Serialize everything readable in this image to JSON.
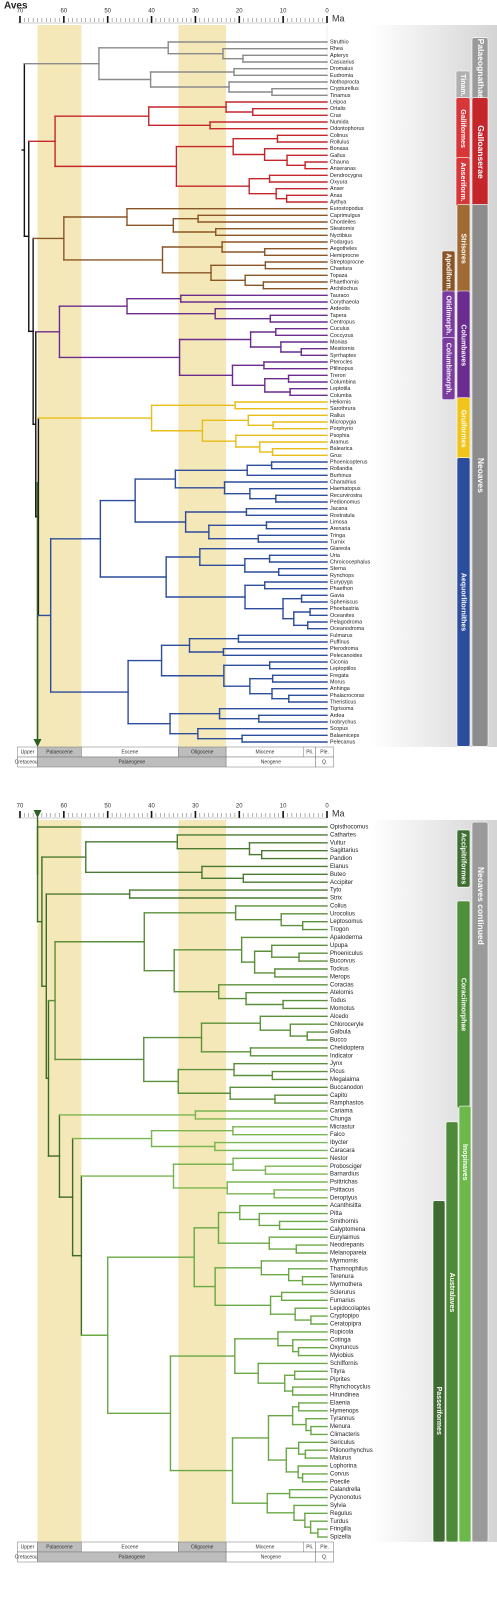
{
  "title": "Aves",
  "timescale": {
    "ticks": [
      70,
      60,
      50,
      40,
      30,
      20,
      10,
      0
    ],
    "unit": "Ma",
    "epochs": [
      "Upper",
      "Palaeocene",
      "Eocene",
      "Oligocene",
      "Miocene",
      "Pli.",
      "Ple."
    ],
    "periods": [
      "Cretaceous",
      "Palaeogene",
      "Neogene",
      "Q."
    ]
  },
  "panels": [
    {
      "taxa": [
        "Struthio",
        "Rhea",
        "Apteryx",
        "Casuarius",
        "Dromaius",
        "Eudromia",
        "Nothoprocta",
        "Crypturellus",
        "Tinamus",
        "Leipoa",
        "Ortalis",
        "Crax",
        "Numida",
        "Odontophorus",
        "Colinus",
        "Rollulus",
        "Bonasa",
        "Gallus",
        "Chauna",
        "Anseranas",
        "Dendrocygna",
        "Oxyura",
        "Anser",
        "Anas",
        "Aythya",
        "Eurostopodus",
        "Caprimulgus",
        "Chordeiles",
        "Steatornis",
        "Nyctibius",
        "Podargus",
        "Aegotheles",
        "Hemiprocne",
        "Streptoprocne",
        "Chaetura",
        "Topaza",
        "Phaethornis",
        "Archilochus",
        "Tauraco",
        "Corythaeola",
        "Ardeotis",
        "Tapera",
        "Centropus",
        "Cuculus",
        "Coccyzus",
        "Monias",
        "Mesitornis",
        "Syrrhaptes",
        "Pterocles",
        "Ptilinopus",
        "Treron",
        "Columbina",
        "Leptotila",
        "Columba",
        "Heliornis",
        "Sarothrura",
        "Rallus",
        "Micropygia",
        "Porphyrio",
        "Psophia",
        "Aramus",
        "Balearica",
        "Grus",
        "Phoenicopterus",
        "Rollandia",
        "Burhinus",
        "Charadrius",
        "Haematopus",
        "Recurvirostra",
        "Pedionomus",
        "Jacana",
        "Rostratula",
        "Limosa",
        "Arenaria",
        "Tringa",
        "Turnix",
        "Glareola",
        "Uria",
        "Chroicocephalus",
        "Sterna",
        "Rynchops",
        "Eurypyga",
        "Phaethon",
        "Gavia",
        "Spheniscus",
        "Phoebastria",
        "Oceanites",
        "Pelagodroma",
        "Oceanodroma",
        "Fulmarus",
        "Puffinus",
        "Pterodroma",
        "Pelecanoides",
        "Ciconia",
        "Leptoptilos",
        "Fregata",
        "Morus",
        "Anhinga",
        "Phalacrocorax",
        "Theristicus",
        "Tigrisoma",
        "Ardea",
        "Ixobrychus",
        "Scopus",
        "Balaeniceps",
        "Pelecanus"
      ],
      "clades": [
        "Palaeognathae",
        "Tinam.",
        "Galliformes",
        "Anseriform.",
        "Galloanserae",
        "Strisores",
        "Apodiform.",
        "Otidimorph.",
        "Columbaves",
        "Columbimorph.",
        "Gruiformes",
        "Aequorlitornithes",
        "Neoaves"
      ]
    },
    {
      "taxa": [
        "Opisthocomus",
        "Cathartes",
        "Vultur",
        "Sagittarius",
        "Pandion",
        "Elanus",
        "Buteo",
        "Accipiter",
        "Tyto",
        "Strix",
        "Colius",
        "Urocolius",
        "Leptosomus",
        "Trogon",
        "Apaloderma",
        "Upupa",
        "Phoeniculus",
        "Bucorvus",
        "Tockus",
        "Merops",
        "Coracias",
        "Atelornis",
        "Todus",
        "Momotus",
        "Alcedo",
        "Chloroceryle",
        "Galbula",
        "Bucco",
        "Chelidoptera",
        "Indicator",
        "Jynx",
        "Picus",
        "Megalaima",
        "Buccanodon",
        "Capito",
        "Ramphastos",
        "Cariama",
        "Chunga",
        "Micrastur",
        "Falco",
        "Ibycter",
        "Caracara",
        "Nestor",
        "Probosciger",
        "Barnardius",
        "Psittrichas",
        "Psittacus",
        "Deroptyus",
        "Acanthisitta",
        "Pitta",
        "Smithornis",
        "Calyptomena",
        "Eurylaimus",
        "Neodrepanis",
        "Melanopareia",
        "Myrmornis",
        "Thamnophilus",
        "Terenura",
        "Myrmothera",
        "Sclerurus",
        "Fumarius",
        "Lepidocolaptes",
        "Cryptopipo",
        "Ceratopipra",
        "Rupicola",
        "Cotinga",
        "Oxyruncus",
        "Myiobius",
        "Schiffornis",
        "Tityra",
        "Piprites",
        "Rhynchocyclus",
        "Hirundinea",
        "Elaenia",
        "Hymenops",
        "Tyrannus",
        "Menura",
        "Climacteris",
        "Sericulus",
        "Ptilonorhynchus",
        "Malurus",
        "Lophorina",
        "Corvus",
        "Poecile",
        "Calandrella",
        "Pycnonotus",
        "Sylvia",
        "Regulus",
        "Turdus",
        "Fringilla",
        "Spizella"
      ],
      "clades": [
        "Neoaves continued",
        "Accipitriformes",
        "Coraciimorphae",
        "Inopinaves",
        "Australaves",
        "Passeriformes"
      ]
    }
  ]
}
